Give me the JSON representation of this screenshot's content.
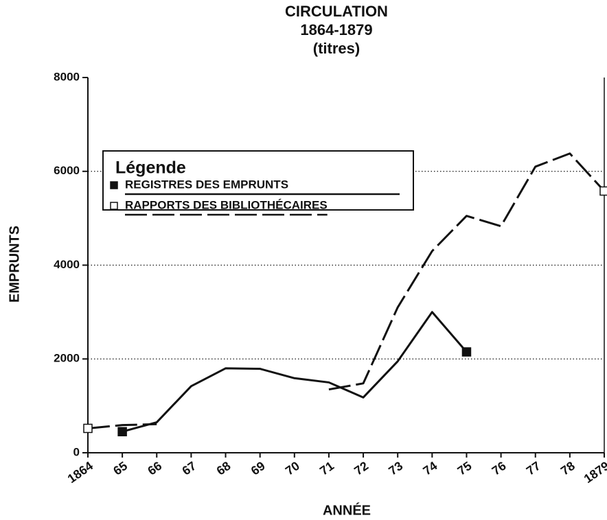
{
  "chart_data": {
    "type": "line",
    "title": [
      "CIRCULATION",
      "1864-1879",
      "(titres)"
    ],
    "x_label": "ANNÉE",
    "y_label": "EMPRUNTS",
    "categories": [
      "1864",
      "65",
      "66",
      "67",
      "68",
      "69",
      "70",
      "71",
      "72",
      "73",
      "74",
      "75",
      "76",
      "77",
      "78",
      "1879"
    ],
    "legend_title": "Légende",
    "series": [
      {
        "name": "REGISTRES DES EMPRUNTS",
        "color": "#111111",
        "dash": "solid",
        "marker": "square-filled",
        "values": [
          null,
          450,
          650,
          1420,
          1800,
          1790,
          1590,
          1500,
          1180,
          1950,
          3000,
          2150,
          null,
          null,
          null,
          null
        ]
      },
      {
        "name": "RAPPORTS DES BIBLIOTHÉCAIRES",
        "color": "#111111",
        "dash": "dashed",
        "marker": "square-open",
        "values": [
          520,
          590,
          610,
          null,
          null,
          null,
          null,
          1350,
          1480,
          3100,
          4300,
          5050,
          4830,
          6100,
          6380,
          5580
        ]
      }
    ],
    "ylim": [
      0,
      8000
    ],
    "yticks": [
      0,
      2000,
      4000,
      6000,
      8000
    ],
    "grid": true
  }
}
